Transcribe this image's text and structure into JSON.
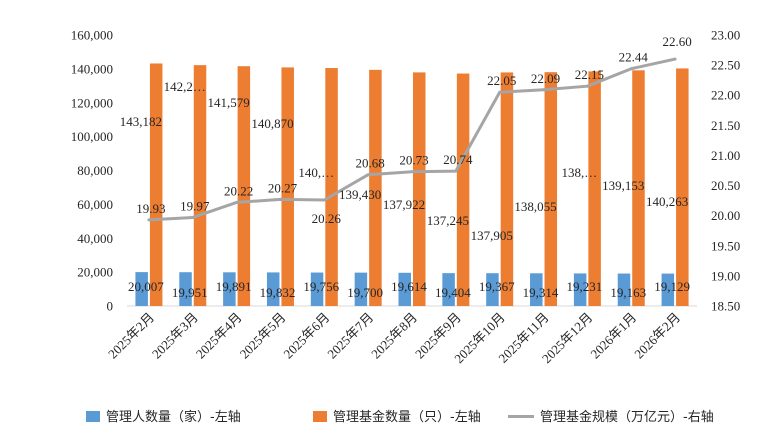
{
  "chart_data": {
    "type": "bar",
    "categories": [
      "2025年2月",
      "2025年3月",
      "2025年4月",
      "2025年5月",
      "2025年6月",
      "2025年7月",
      "2025年8月",
      "2025年9月",
      "2025年10月",
      "2025年11月",
      "2025年12月",
      "2026年1月",
      "2026年2月"
    ],
    "series": [
      {
        "name": "管理人数量（家）-左轴",
        "kind": "bar",
        "axis": "left",
        "color": "#5B9BD5",
        "values": [
          20007,
          19951,
          19891,
          19832,
          19756,
          19700,
          19614,
          19404,
          19367,
          19314,
          19231,
          19163,
          19129
        ],
        "labels": [
          "20,007",
          "19,951",
          "19,891",
          "19,832",
          "19,756",
          "19,700",
          "19,614",
          "19,404",
          "19,367",
          "19,314",
          "19,231",
          "19,163",
          "19,129"
        ]
      },
      {
        "name": "管理基金数量（只）-左轴",
        "kind": "bar",
        "axis": "left",
        "color": "#ED7D31",
        "values": [
          143182,
          142200,
          141579,
          140870,
          140500,
          139430,
          137922,
          137245,
          137905,
          138055,
          138500,
          139153,
          140263
        ],
        "labels": [
          "143,182",
          "142,2…",
          "141,579",
          "140,870",
          "140,…",
          "139,430",
          "137,922",
          "137,245",
          "137,905",
          "138,055",
          "138,…",
          "139,153",
          "140,263"
        ]
      },
      {
        "name": "管理基金规模（万亿元）-右轴",
        "kind": "line",
        "axis": "right",
        "color": "#A5A5A5",
        "values": [
          19.93,
          19.97,
          20.22,
          20.27,
          20.26,
          20.68,
          20.73,
          20.74,
          22.05,
          22.09,
          22.15,
          22.44,
          22.6
        ],
        "labels": [
          "19.93",
          "19.97",
          "20.22",
          "20.27",
          "20.26",
          "20.68",
          "20.73",
          "20.74",
          "22.05",
          "22.09",
          "22.15",
          "22.44",
          "22.60"
        ]
      }
    ],
    "left_axis": {
      "ylim": [
        0,
        160000
      ],
      "ticks": [
        0,
        20000,
        40000,
        60000,
        80000,
        100000,
        120000,
        140000,
        160000
      ],
      "tick_labels": [
        "0",
        "20,000",
        "40,000",
        "60,000",
        "80,000",
        "100,000",
        "120,000",
        "140,000",
        "160,000"
      ]
    },
    "right_axis": {
      "ylim": [
        18.5,
        23.0
      ],
      "ticks": [
        18.5,
        19.0,
        19.5,
        20.0,
        20.5,
        21.0,
        21.5,
        22.0,
        22.5,
        23.0
      ],
      "tick_labels": [
        "18.50",
        "19.00",
        "19.50",
        "20.00",
        "20.50",
        "21.00",
        "21.50",
        "22.00",
        "22.50",
        "23.00"
      ]
    },
    "title": "",
    "xlabel": "",
    "grid": false,
    "legend_position": "bottom"
  }
}
